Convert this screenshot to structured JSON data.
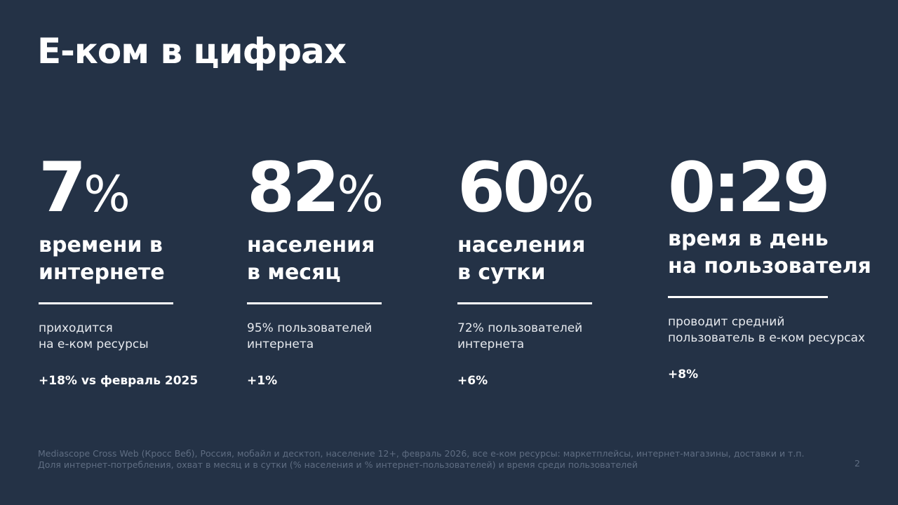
{
  "header": {
    "title": "Е-ком в цифрах"
  },
  "stats": [
    {
      "value": "7",
      "unit": "%",
      "label": [
        "времени в",
        "интернете"
      ],
      "note": [
        "приходится",
        "на е-ком ресурсы"
      ],
      "change": "+18% vs февраль 2025"
    },
    {
      "value": "82",
      "unit": "%",
      "label": [
        "населения",
        "в месяц"
      ],
      "note": [
        "95% пользователей",
        "интернета"
      ],
      "change": "+1%"
    },
    {
      "value": "60",
      "unit": "%",
      "label": [
        "населения",
        "в сутки"
      ],
      "note": [
        "72% пользователей",
        "интернета"
      ],
      "change": "+6%"
    },
    {
      "value": "0:29",
      "label": [
        "время в день",
        "на пользователя"
      ],
      "note": [
        "проводит средний",
        "пользователь в е-ком ресурсах"
      ],
      "change": "+8%"
    }
  ],
  "footer": {
    "source": [
      "Mediascope Cross Web (Кросс Веб), Россия, мобайл и десктоп, население 12+, февраль 2026, все е-ком ресурсы: маркетплейсы, интернет-магазины, доставки и т.п.",
      "Доля интернет-потребления, охват в месяц и в сутки (% населения и % интернет-пользователей) и время среди пользователей"
    ],
    "page": "2"
  }
}
